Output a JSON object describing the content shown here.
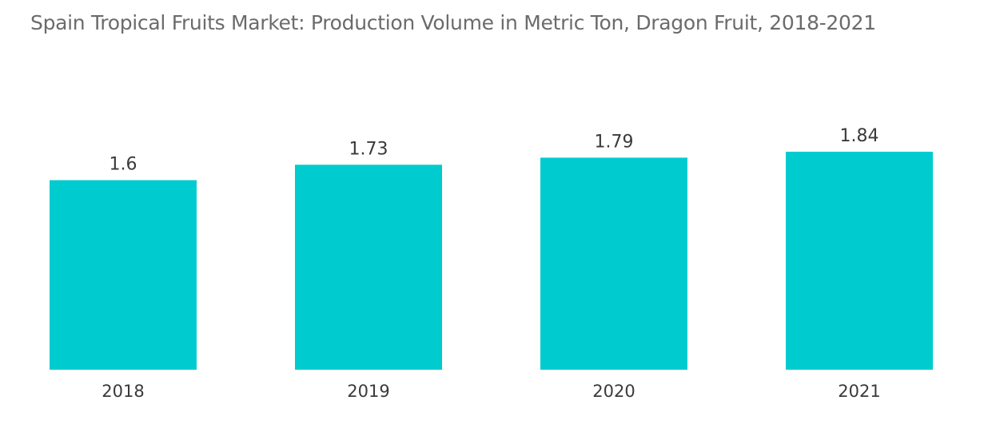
{
  "chart_data": {
    "type": "bar",
    "title": "Spain Tropical Fruits Market: Production Volume in Metric Ton, Dragon Fruit, 2018-2021",
    "categories": [
      "2018",
      "2019",
      "2020",
      "2021"
    ],
    "values": [
      1.6,
      1.73,
      1.79,
      1.84
    ],
    "value_labels": [
      "1.6",
      "1.73",
      "1.79",
      "1.84"
    ],
    "xlabel": "",
    "ylabel": "",
    "ylim": [
      0,
      1.84
    ],
    "grid": false,
    "legend": "none",
    "bar_color": "#00ccd0"
  }
}
